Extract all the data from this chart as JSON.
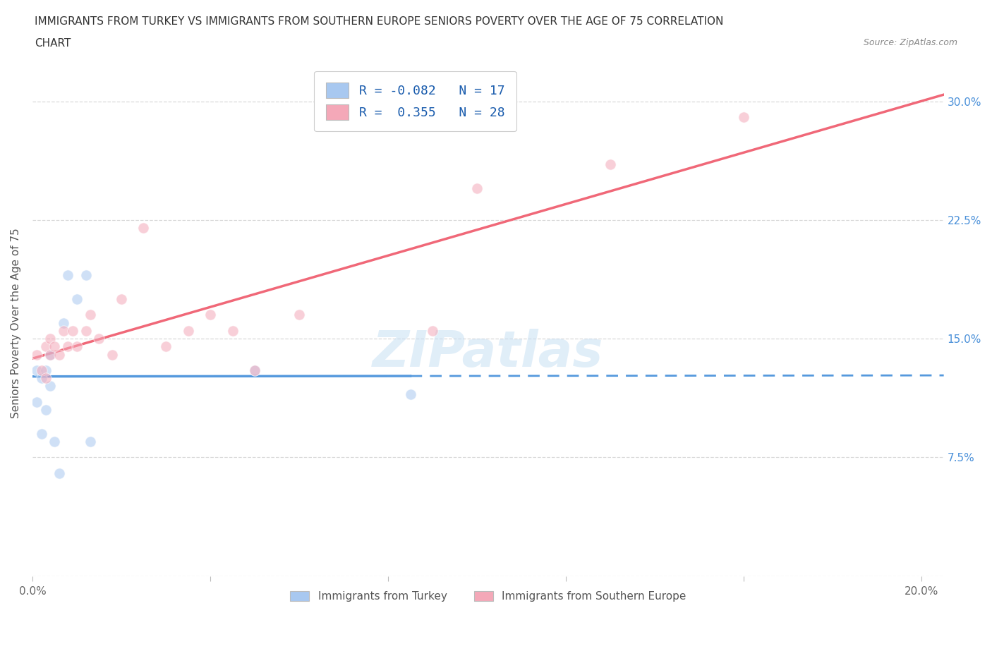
{
  "title_line1": "IMMIGRANTS FROM TURKEY VS IMMIGRANTS FROM SOUTHERN EUROPE SENIORS POVERTY OVER THE AGE OF 75 CORRELATION",
  "title_line2": "CHART",
  "source": "Source: ZipAtlas.com",
  "ylabel": "Seniors Poverty Over the Age of 75",
  "xlim": [
    0.0,
    0.205
  ],
  "ylim": [
    0.0,
    0.32
  ],
  "x_ticks": [
    0.0,
    0.04,
    0.08,
    0.12,
    0.16,
    0.2
  ],
  "y_ticks": [
    0.0,
    0.075,
    0.15,
    0.225,
    0.3
  ],
  "turkey_R": -0.082,
  "turkey_N": 17,
  "south_europe_R": 0.355,
  "south_europe_N": 28,
  "turkey_color": "#a8c8f0",
  "south_europe_color": "#f4a8b8",
  "turkey_line_color": "#5599dd",
  "south_europe_line_color": "#f06878",
  "legend_label_turkey": "Immigrants from Turkey",
  "legend_label_south_europe": "Immigrants from Southern Europe",
  "turkey_scatter_x": [
    0.001,
    0.001,
    0.002,
    0.002,
    0.003,
    0.003,
    0.004,
    0.004,
    0.005,
    0.006,
    0.007,
    0.008,
    0.01,
    0.012,
    0.013,
    0.05,
    0.085
  ],
  "turkey_scatter_y": [
    0.13,
    0.11,
    0.125,
    0.09,
    0.13,
    0.105,
    0.14,
    0.12,
    0.085,
    0.065,
    0.16,
    0.19,
    0.175,
    0.19,
    0.085,
    0.13,
    0.115
  ],
  "south_europe_scatter_x": [
    0.001,
    0.002,
    0.003,
    0.003,
    0.004,
    0.004,
    0.005,
    0.006,
    0.007,
    0.008,
    0.009,
    0.01,
    0.012,
    0.013,
    0.015,
    0.018,
    0.02,
    0.025,
    0.03,
    0.035,
    0.04,
    0.045,
    0.05,
    0.06,
    0.09,
    0.1,
    0.13,
    0.16
  ],
  "south_europe_scatter_y": [
    0.14,
    0.13,
    0.145,
    0.125,
    0.14,
    0.15,
    0.145,
    0.14,
    0.155,
    0.145,
    0.155,
    0.145,
    0.155,
    0.165,
    0.15,
    0.14,
    0.175,
    0.22,
    0.145,
    0.155,
    0.165,
    0.155,
    0.13,
    0.165,
    0.155,
    0.245,
    0.26,
    0.29
  ],
  "background_color": "#ffffff",
  "grid_color": "#d8d8d8",
  "dot_size": 120,
  "dot_alpha": 0.55,
  "watermark": "ZIPatlas"
}
